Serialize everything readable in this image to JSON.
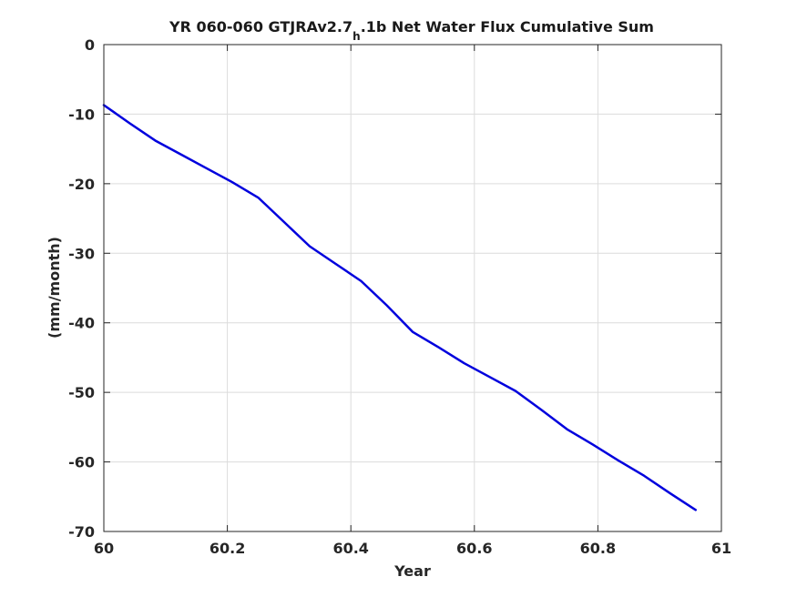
{
  "chart_data": {
    "type": "line",
    "title": {
      "main": "YR 060-060 GTJRAv2.7",
      "subscript": "h",
      "rest": ".1b Net Water Flux Cumulative Sum"
    },
    "xlabel": "Year",
    "ylabel": "(mm/month)",
    "xlim": [
      60,
      61
    ],
    "ylim": [
      -70,
      0
    ],
    "xticks": [
      "60",
      "60.2",
      "60.4",
      "60.6",
      "60.8",
      "61"
    ],
    "yticks": [
      "0",
      "-10",
      "-20",
      "-30",
      "-40",
      "-50",
      "-60",
      "-70"
    ],
    "grid": true,
    "line_color": "#0000dd",
    "series": [
      {
        "x": [
          60.0,
          60.0417,
          60.0833,
          60.125,
          60.1667,
          60.2083,
          60.25,
          60.2917,
          60.3333,
          60.375,
          60.4167,
          60.4583,
          60.5,
          60.5417,
          60.5833,
          60.625,
          60.6667,
          60.7083,
          60.75,
          60.7917,
          60.8333,
          60.875,
          60.9167,
          60.9583
        ],
        "y": [
          -8.7,
          -11.3,
          -13.8,
          -15.8,
          -17.8,
          -19.8,
          -22.0,
          -25.5,
          -29.0,
          -31.5,
          -34.0,
          -37.5,
          -41.3,
          -43.5,
          -45.8,
          -47.8,
          -49.8,
          -52.5,
          -55.3,
          -57.5,
          -59.8,
          -62.0,
          -64.5,
          -66.9
        ]
      }
    ]
  }
}
